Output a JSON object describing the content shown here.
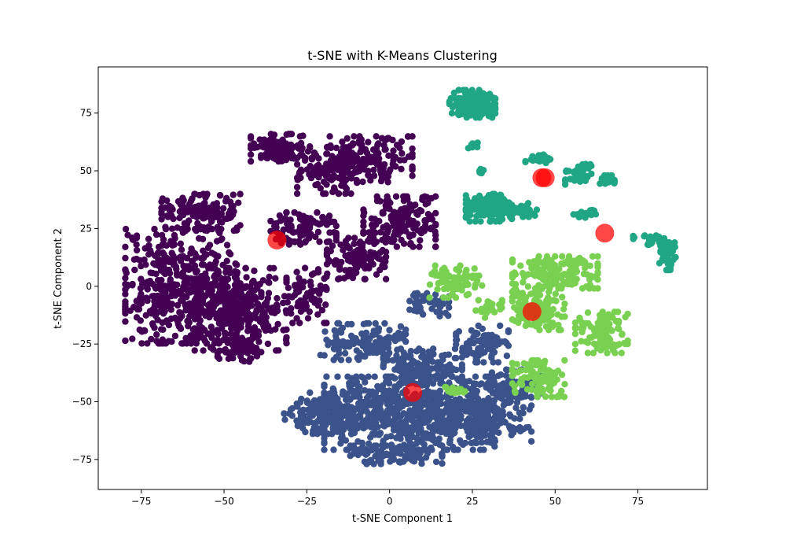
{
  "chart_data": {
    "type": "scatter",
    "title": "t-SNE with K-Means Clustering",
    "xlabel": "t-SNE Component 1",
    "ylabel": "t-SNE Component 2",
    "xlim": [
      -88,
      96
    ],
    "ylim": [
      -88,
      95
    ],
    "xticks": [
      -75,
      -50,
      -25,
      0,
      25,
      50,
      75
    ],
    "yticks": [
      -75,
      -50,
      -25,
      0,
      25,
      50,
      75
    ],
    "grid": false,
    "legend": "none",
    "centroid_color": "#ff0000",
    "series": [
      {
        "color": "#440154",
        "blobs": [
          {
            "cx": -63,
            "cy": 0,
            "rx": 17,
            "ry": 25,
            "n": 480,
            "seed": 11
          },
          {
            "cx": -45,
            "cy": -10,
            "rx": 14,
            "ry": 18,
            "n": 300,
            "seed": 12
          },
          {
            "cx": -57,
            "cy": 32,
            "rx": 12,
            "ry": 8,
            "n": 140,
            "seed": 13
          },
          {
            "cx": -33,
            "cy": 60,
            "rx": 9,
            "ry": 6,
            "n": 110,
            "seed": 14
          },
          {
            "cx": -18,
            "cy": 50,
            "rx": 10,
            "ry": 10,
            "n": 100,
            "seed": 15
          },
          {
            "cx": -6,
            "cy": 55,
            "rx": 13,
            "ry": 10,
            "n": 150,
            "seed": 16
          },
          {
            "cx": 3,
            "cy": 28,
            "rx": 11,
            "ry": 11,
            "n": 170,
            "seed": 17
          },
          {
            "cx": -10,
            "cy": 12,
            "rx": 9,
            "ry": 9,
            "n": 120,
            "seed": 18
          },
          {
            "cx": -26,
            "cy": 25,
            "rx": 10,
            "ry": 7,
            "n": 100,
            "seed": 19
          },
          {
            "cx": -25,
            "cy": -4,
            "rx": 6,
            "ry": 12,
            "n": 70,
            "seed": 20
          },
          {
            "cx": -45,
            "cy": -28,
            "rx": 7,
            "ry": 5,
            "n": 60,
            "seed": 21
          }
        ]
      },
      {
        "color": "#3b528b",
        "blobs": [
          {
            "cx": 6,
            "cy": -55,
            "rx": 26,
            "ry": 16,
            "n": 620,
            "seed": 31
          },
          {
            "cx": -18,
            "cy": -55,
            "rx": 14,
            "ry": 9,
            "n": 220,
            "seed": 32
          },
          {
            "cx": 28,
            "cy": -55,
            "rx": 15,
            "ry": 13,
            "n": 240,
            "seed": 33
          },
          {
            "cx": -8,
            "cy": -24,
            "rx": 13,
            "ry": 8,
            "n": 140,
            "seed": 34
          },
          {
            "cx": 10,
            "cy": -35,
            "rx": 12,
            "ry": 8,
            "n": 160,
            "seed": 35
          },
          {
            "cx": 28,
            "cy": -25,
            "rx": 8,
            "ry": 8,
            "n": 90,
            "seed": 36
          },
          {
            "cx": 12,
            "cy": -8,
            "rx": 6,
            "ry": 5,
            "n": 40,
            "seed": 37
          },
          {
            "cx": 38,
            "cy": -42,
            "rx": 8,
            "ry": 6,
            "n": 60,
            "seed": 38
          },
          {
            "cx": 2,
            "cy": -73,
            "rx": 14,
            "ry": 4,
            "n": 90,
            "seed": 39
          }
        ]
      },
      {
        "color": "#21a685",
        "blobs": [
          {
            "cx": 25,
            "cy": 79,
            "rx": 7,
            "ry": 6,
            "n": 150,
            "seed": 51
          },
          {
            "cx": 30,
            "cy": 34,
            "rx": 7,
            "ry": 6,
            "n": 170,
            "seed": 52
          },
          {
            "cx": 40,
            "cy": 33,
            "rx": 5,
            "ry": 3,
            "n": 40,
            "seed": 53
          },
          {
            "cx": 57,
            "cy": 49,
            "rx": 4,
            "ry": 5,
            "n": 45,
            "seed": 54
          },
          {
            "cx": 66,
            "cy": 46,
            "rx": 3,
            "ry": 2,
            "n": 20,
            "seed": 55
          },
          {
            "cx": 45,
            "cy": 55,
            "rx": 4,
            "ry": 2,
            "n": 25,
            "seed": 56
          },
          {
            "cx": 59,
            "cy": 31,
            "rx": 4,
            "ry": 2,
            "n": 20,
            "seed": 57
          },
          {
            "cx": 78,
            "cy": 20,
            "rx": 5,
            "ry": 2,
            "n": 30,
            "seed": 58
          },
          {
            "cx": 84,
            "cy": 13,
            "rx": 2.5,
            "ry": 6,
            "n": 40,
            "seed": 59
          },
          {
            "cx": 25,
            "cy": 61,
            "rx": 1.6,
            "ry": 1.6,
            "n": 8,
            "seed": 60
          },
          {
            "cx": 27,
            "cy": 50,
            "rx": 1.5,
            "ry": 1.5,
            "n": 6,
            "seed": 61
          }
        ]
      },
      {
        "color": "#7ad151",
        "blobs": [
          {
            "cx": 20,
            "cy": 2,
            "rx": 8,
            "ry": 7,
            "n": 90,
            "seed": 71
          },
          {
            "cx": 50,
            "cy": 6,
            "rx": 13,
            "ry": 7,
            "n": 170,
            "seed": 72
          },
          {
            "cx": 45,
            "cy": -10,
            "rx": 8,
            "ry": 9,
            "n": 120,
            "seed": 73
          },
          {
            "cx": 64,
            "cy": -20,
            "rx": 8,
            "ry": 9,
            "n": 120,
            "seed": 74
          },
          {
            "cx": 45,
            "cy": -40,
            "rx": 8,
            "ry": 8,
            "n": 100,
            "seed": 75
          },
          {
            "cx": 30,
            "cy": -10,
            "rx": 4,
            "ry": 4,
            "n": 25,
            "seed": 76
          },
          {
            "cx": 20,
            "cy": -45,
            "rx": 5,
            "ry": 2,
            "n": 12,
            "seed": 77
          }
        ]
      }
    ],
    "centroids": [
      {
        "x": -34,
        "y": 20
      },
      {
        "x": 46,
        "y": 47
      },
      {
        "x": 47,
        "y": 47
      },
      {
        "x": 65,
        "y": 23
      },
      {
        "x": 43,
        "y": -11
      },
      {
        "x": 7,
        "y": -46
      }
    ]
  }
}
